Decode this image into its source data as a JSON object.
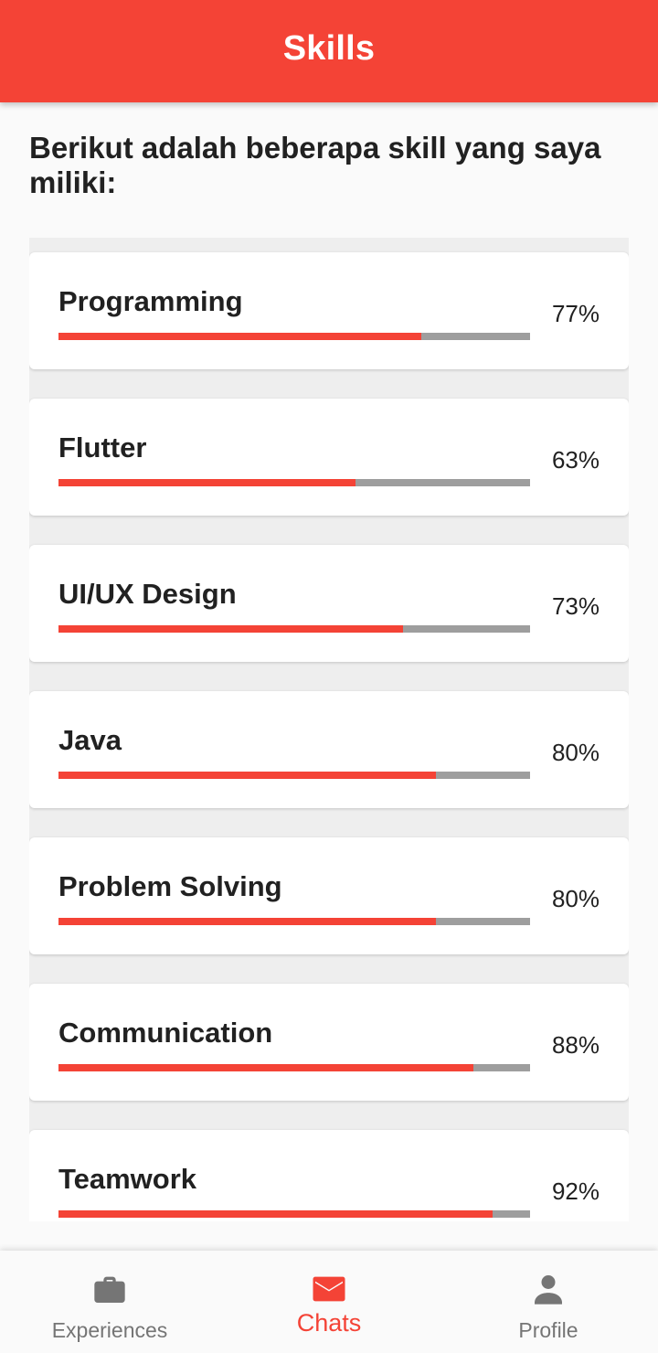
{
  "app_bar": {
    "title": "Skills"
  },
  "intro": "Berikut adalah beberapa skill yang saya miliki:",
  "colors": {
    "accent": "#f44336",
    "track": "#9e9e9e",
    "inactive": "#757575"
  },
  "skills": [
    {
      "name": "Programming",
      "percent_label": "77%",
      "level": 0.77
    },
    {
      "name": "Flutter",
      "percent_label": "63%",
      "level": 0.63
    },
    {
      "name": "UI/UX Design",
      "percent_label": "73%",
      "level": 0.73
    },
    {
      "name": "Java",
      "percent_label": "80%",
      "level": 0.8
    },
    {
      "name": "Problem Solving",
      "percent_label": "80%",
      "level": 0.8
    },
    {
      "name": "Communication",
      "percent_label": "88%",
      "level": 0.88
    },
    {
      "name": "Teamwork",
      "percent_label": "92%",
      "level": 0.92
    }
  ],
  "bottom_nav": {
    "items": [
      {
        "label": "Experiences",
        "icon": "briefcase-icon",
        "active": false
      },
      {
        "label": "Chats",
        "icon": "mail-icon",
        "active": true
      },
      {
        "label": "Profile",
        "icon": "person-icon",
        "active": false
      }
    ]
  }
}
